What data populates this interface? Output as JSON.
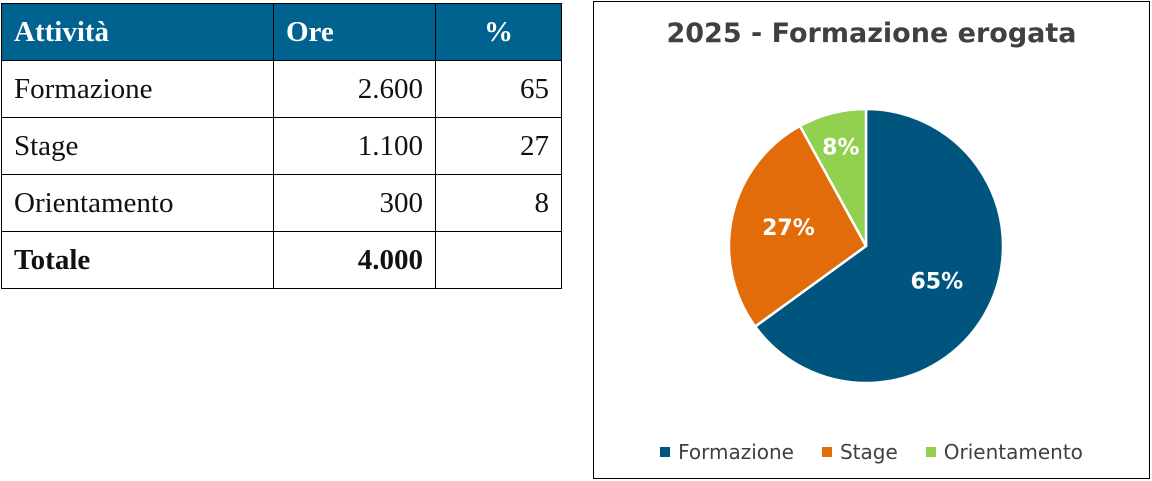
{
  "table": {
    "headers": [
      "Attività",
      "Ore",
      "%"
    ],
    "rows": [
      {
        "activity": "Formazione",
        "hours": "2.600",
        "pct": "65"
      },
      {
        "activity": "Stage",
        "hours": "1.100",
        "pct": "27"
      },
      {
        "activity": "Orientamento",
        "hours": "300",
        "pct": "8"
      }
    ],
    "total": {
      "label": "Totale",
      "hours": "4.000",
      "pct": ""
    },
    "header_color": "#00628f"
  },
  "chart_data": {
    "type": "pie",
    "title": "2025 - Formazione erogata",
    "categories": [
      "Formazione",
      "Stage",
      "Orientamento"
    ],
    "values": [
      65,
      27,
      8
    ],
    "labels": [
      "65%",
      "27%",
      "8%"
    ],
    "colors": [
      "#00557f",
      "#e36c0a",
      "#92d050"
    ],
    "legend_position": "bottom"
  }
}
